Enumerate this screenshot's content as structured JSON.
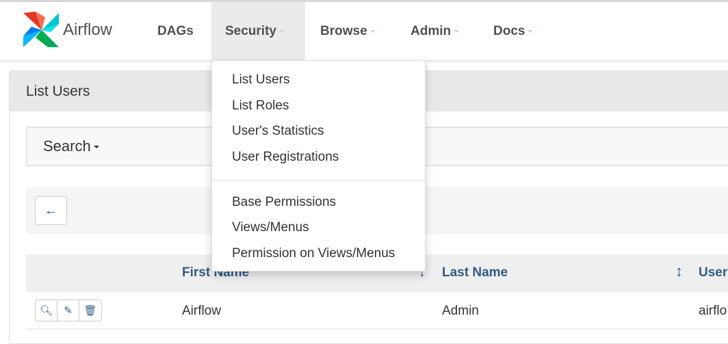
{
  "brand": {
    "name": "Airflow"
  },
  "nav": [
    {
      "label": "DAGs"
    },
    {
      "label": "Security"
    },
    {
      "label": "Browse"
    },
    {
      "label": "Admin"
    },
    {
      "label": "Docs"
    }
  ],
  "security_menu": {
    "group1": [
      "List Users",
      "List Roles",
      "User's Statistics",
      "User Registrations"
    ],
    "group2": [
      "Base Permissions",
      "Views/Menus",
      "Permission on Views/Menus"
    ]
  },
  "panel": {
    "title": "List Users"
  },
  "search": {
    "label": "Search"
  },
  "table": {
    "headers": [
      "First Name",
      "Last Name",
      "User"
    ],
    "rows": [
      {
        "first_name": "Airflow",
        "last_name": "Admin",
        "username": "airflo"
      }
    ]
  },
  "colors": {
    "link": "#305b86",
    "active_nav": "#ebebeb"
  }
}
